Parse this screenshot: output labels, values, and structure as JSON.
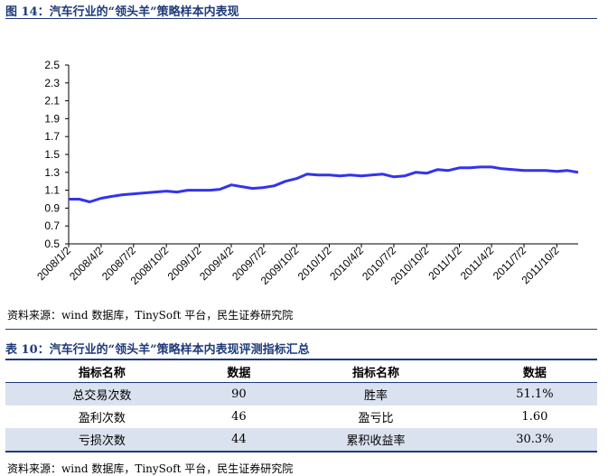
{
  "figure": {
    "title": "图 14：汽车行业的“领头羊”策略样本内表现",
    "source": "资料来源：wind 数据库，TinySoft 平台，民生证券研究院"
  },
  "chart_data": {
    "type": "line",
    "x_ticks": [
      "2008/1/2",
      "2008/4/2",
      "2008/7/2",
      "2008/10/2",
      "2009/1/2",
      "2009/4/2",
      "2009/7/2",
      "2009/10/2",
      "2010/1/2",
      "2010/4/2",
      "2010/7/2",
      "2010/10/2",
      "2011/1/2",
      "2011/4/2",
      "2011/7/2",
      "2011/10/2"
    ],
    "y_ticks": [
      "0.5",
      "0.7",
      "0.9",
      "1.1",
      "1.3",
      "1.5",
      "1.7",
      "1.9",
      "2.1",
      "2.3",
      "2.5"
    ],
    "ylim": [
      0.5,
      2.5
    ],
    "series": [
      {
        "color": "#3333ee",
        "x": [
          "2008/1/2",
          "2008/2/1",
          "2008/3/1",
          "2008/4/2",
          "2008/5/1",
          "2008/6/1",
          "2008/7/2",
          "2008/8/1",
          "2008/9/1",
          "2008/10/2",
          "2008/11/1",
          "2008/12/1",
          "2009/1/2",
          "2009/2/1",
          "2009/3/1",
          "2009/4/2",
          "2009/5/1",
          "2009/6/1",
          "2009/7/2",
          "2009/8/1",
          "2009/9/1",
          "2009/10/2",
          "2009/11/1",
          "2009/12/1",
          "2010/1/2",
          "2010/2/1",
          "2010/3/1",
          "2010/4/2",
          "2010/5/1",
          "2010/6/1",
          "2010/7/2",
          "2010/8/1",
          "2010/9/1",
          "2010/10/2",
          "2010/11/1",
          "2010/12/1",
          "2011/1/2",
          "2011/2/1",
          "2011/3/1",
          "2011/4/2",
          "2011/5/1",
          "2011/6/1",
          "2011/7/2",
          "2011/8/1",
          "2011/9/1",
          "2011/10/2",
          "2011/11/1",
          "2011/12/1"
        ],
        "values": [
          1.0,
          1.0,
          0.97,
          1.01,
          1.03,
          1.05,
          1.06,
          1.07,
          1.08,
          1.09,
          1.08,
          1.1,
          1.1,
          1.1,
          1.11,
          1.16,
          1.14,
          1.12,
          1.13,
          1.15,
          1.2,
          1.23,
          1.28,
          1.27,
          1.27,
          1.26,
          1.27,
          1.26,
          1.27,
          1.28,
          1.25,
          1.26,
          1.3,
          1.29,
          1.33,
          1.32,
          1.35,
          1.35,
          1.36,
          1.36,
          1.34,
          1.33,
          1.32,
          1.32,
          1.32,
          1.31,
          1.32,
          1.3
        ]
      }
    ],
    "grid": false
  },
  "table": {
    "title": "表 10：汽车行业的“领头羊”策略样本内表现评测指标汇总",
    "headers": [
      "指标名称",
      "数据",
      "指标名称",
      "数据"
    ],
    "rows": [
      [
        "总交易次数",
        "90",
        "胜率",
        "51.1%"
      ],
      [
        "盈利次数",
        "46",
        "盈亏比",
        "1.60"
      ],
      [
        "亏损次数",
        "44",
        "累积收益率",
        "30.3%"
      ]
    ],
    "source": "资料来源：wind 数据库，TinySoft 平台，民生证券研究院"
  }
}
